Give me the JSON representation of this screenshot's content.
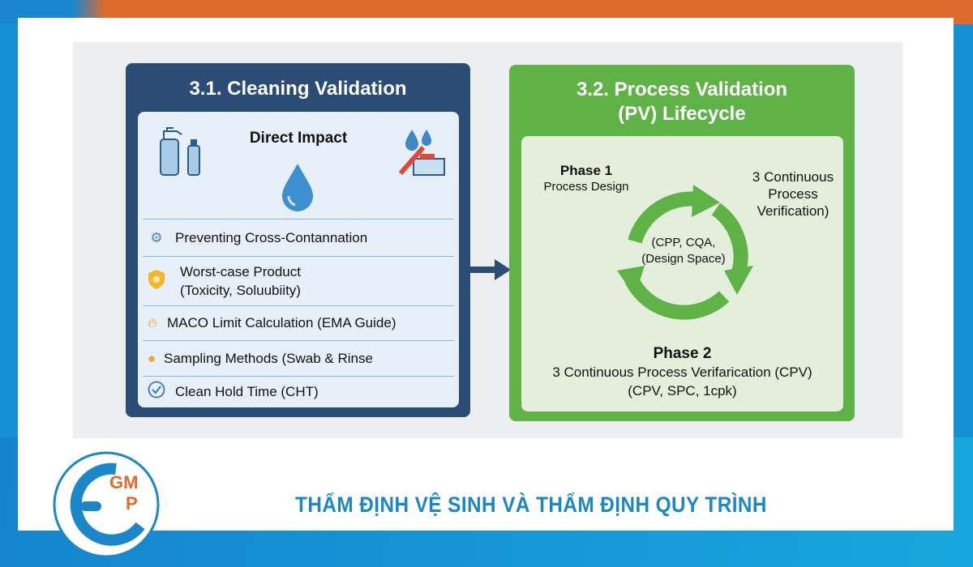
{
  "left_panel": {
    "title": "3.1. Cleaning Validation",
    "card_heading": "Direct Impact",
    "items": [
      {
        "icon": "contamination-icon",
        "label": "Preventing Cross-Contannation"
      },
      {
        "icon": "shield-icon",
        "label": "Worst-case Product",
        "label2": "(Toxicity, Soluubiity)"
      },
      {
        "icon": "flame-icon",
        "label": "MACO Limit Calculation (EMA Guide)"
      },
      {
        "icon": "hand-drop-icon",
        "label": "Sampling Methods (Swab & Rinse"
      },
      {
        "icon": "check-circle-icon",
        "label": "Clean Hold Time (CHT)"
      }
    ]
  },
  "right_panel": {
    "title_line1": "3.2. Process Validation",
    "title_line2": "(PV) Lifecycle",
    "phase1_title": "Phase 1",
    "phase1_sub": "Process Design",
    "stage3_line1": "3 Continuous",
    "stage3_line2": "Process",
    "stage3_line3": "Verification)",
    "center_line1": "(CPP, CQA,",
    "center_line2": "(Design Space)",
    "phase2_title": "Phase 2",
    "phase2_line1": "3 Continuous Process Verifarication (CPV)",
    "phase2_line2": "(CPV, SPC, 1cpk)"
  },
  "footer": {
    "title": "THẨM ĐỊNH VỆ SINH VÀ THẨM ĐỊNH QUY TRÌNH",
    "logo_text": "GMP"
  },
  "colors": {
    "navy": "#2b4c74",
    "green": "#5fb346",
    "orange": "#e06a2c",
    "blue": "#1b87c9"
  }
}
